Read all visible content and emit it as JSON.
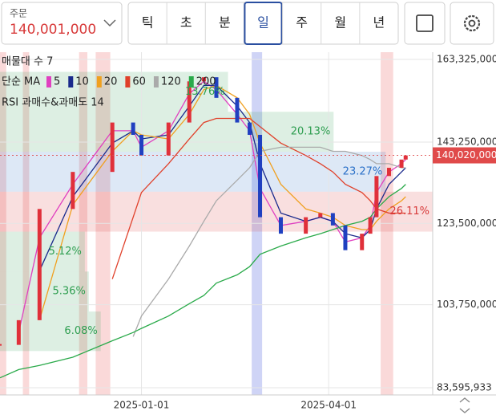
{
  "toolbar": {
    "order_label": "주문",
    "order_price": "140,001,000",
    "buttons": [
      "틱",
      "초",
      "분",
      "일",
      "주",
      "월",
      "년"
    ],
    "selected": 3
  },
  "chart_data": {
    "type": "candlestick",
    "overlay_labels": {
      "volume_profile": "매물대 수 7",
      "ma": "단순 MA",
      "rsi": "RSI 과매수&과매도 14"
    },
    "x": [
      "2024-10-25",
      "2024-11-03",
      "2024-11-13",
      "2024-11-29",
      "2024-12-18",
      "2024-12-28",
      "2025-01-01",
      "2025-01-14",
      "2025-01-24",
      "2025-01-31",
      "2025-02-06",
      "2025-02-16",
      "2025-02-22",
      "2025-02-27",
      "2025-03-09",
      "2025-03-21",
      "2025-03-28",
      "2025-04-03",
      "2025-04-09",
      "2025-04-17",
      "2025-04-21",
      "2025-04-24",
      "2025-04-30",
      "2025-05-06",
      "2025-05-08"
    ],
    "values": [
      94000000,
      100000000,
      127000000,
      136000000,
      148000000,
      145000000,
      140000000,
      148000000,
      158000000,
      159000000,
      154000000,
      148000000,
      145000000,
      125000000,
      121000000,
      125000000,
      126000000,
      123000000,
      117000000,
      121000000,
      125000000,
      135000000,
      137000000,
      139000000,
      140000000
    ],
    "up_color": "#e0303a",
    "down_color": "#2040c0",
    "series": [
      {
        "name": "5",
        "color": "#e040c0",
        "values": [
          null,
          97000000,
          120000000,
          133000000,
          146000000,
          146000000,
          142000000,
          146000000,
          155000000,
          158000000,
          156000000,
          150000000,
          146000000,
          132000000,
          123000000,
          124000000,
          125000000,
          124000000,
          119000000,
          120000000,
          123000000,
          131000000,
          136000000,
          138000000,
          139000000
        ]
      },
      {
        "name": "10",
        "color": "#1a2a8c",
        "values": [
          null,
          null,
          112000000,
          130000000,
          143000000,
          146000000,
          144000000,
          145000000,
          152000000,
          157000000,
          157000000,
          152000000,
          148000000,
          138000000,
          126000000,
          124000000,
          125000000,
          124000000,
          121000000,
          120000000,
          122000000,
          127000000,
          133000000,
          136000000,
          137000000
        ]
      },
      {
        "name": "20",
        "color": "#f0a020",
        "values": [
          null,
          null,
          100000000,
          128000000,
          141000000,
          146000000,
          145000000,
          144000000,
          150000000,
          156000000,
          157000000,
          154000000,
          150000000,
          143000000,
          133000000,
          127000000,
          126000000,
          125000000,
          123000000,
          122000000,
          122000000,
          124000000,
          127000000,
          129000000,
          130000000
        ]
      },
      {
        "name": "60",
        "color": "#e0402a",
        "values": [
          null,
          null,
          null,
          null,
          110000000,
          125000000,
          131000000,
          138000000,
          144000000,
          148000000,
          149000000,
          149000000,
          149000000,
          147000000,
          143000000,
          140000000,
          138000000,
          136000000,
          133000000,
          131000000,
          129000000,
          127000000,
          126000000,
          126000000,
          126000000
        ]
      },
      {
        "name": "120",
        "color": "#aaaaaa",
        "values": [
          null,
          null,
          null,
          null,
          null,
          96000000,
          101000000,
          110000000,
          118000000,
          124000000,
          129000000,
          134000000,
          137000000,
          141000000,
          142000000,
          142000000,
          142000000,
          141000000,
          141000000,
          140000000,
          139000000,
          138000000,
          138000000,
          137000000,
          137000000
        ]
      },
      {
        "name": "200",
        "color": "#2aaa4a",
        "values": [
          86000000,
          88000000,
          89000000,
          91000000,
          95000000,
          97000000,
          98000000,
          101000000,
          104000000,
          106000000,
          109000000,
          111000000,
          113000000,
          116000000,
          118000000,
          120000000,
          121000000,
          122000000,
          123000000,
          124000000,
          125000000,
          127000000,
          130000000,
          132000000,
          133000000
        ]
      }
    ],
    "volume_profile": {
      "bins": [
        92500000,
        102100000,
        111800000,
        121500000,
        131200000,
        140900000,
        150600000,
        160300000
      ],
      "values": [
        6.08,
        5.36,
        5.12,
        26.11,
        23.27,
        20.13,
        13.76
      ],
      "value_labels": [
        "6.08%",
        "5.36%",
        "5.12%",
        "26.11%",
        "23.27%",
        "20.13%",
        "13.76%"
      ],
      "colors": [
        "#2e9e50",
        "#2e9e50",
        "#2e9e50",
        "#d83a3a",
        "#2a70c8",
        "#2e9e50",
        "#2e9e50"
      ]
    },
    "highlights": [
      {
        "start": "2024-10-25",
        "end": "2024-10-28",
        "color": "#f08080"
      },
      {
        "start": "2024-11-05",
        "end": "2024-11-08",
        "color": "#f08080"
      },
      {
        "start": "2024-12-02",
        "end": "2024-12-06",
        "color": "#f08080"
      },
      {
        "start": "2024-12-10",
        "end": "2024-12-17",
        "color": "#f08080"
      },
      {
        "start": "2025-02-23",
        "end": "2025-02-28",
        "color": "#6070e0"
      },
      {
        "start": "2025-04-26",
        "end": "2025-05-02",
        "color": "#f08080"
      }
    ],
    "xlim": [
      "2024-10-25",
      "2025-05-21"
    ],
    "xticks": [
      "2025-01-01",
      "2025-04-01"
    ],
    "ylim": [
      83595933,
      163325000
    ],
    "yticks": [
      {
        "value": 83595933,
        "label": "83,595,933"
      },
      {
        "value": 103750000,
        "label": "103,750,000"
      },
      {
        "value": 123500000,
        "label": "123,500,000"
      },
      {
        "value": 143250000,
        "label": "143,250,000"
      },
      {
        "value": 163325000,
        "label": "163,325,000"
      }
    ],
    "last_price": {
      "value": 140020000,
      "label": "140,020,000",
      "color": "#e04a4a"
    },
    "grid": true
  }
}
